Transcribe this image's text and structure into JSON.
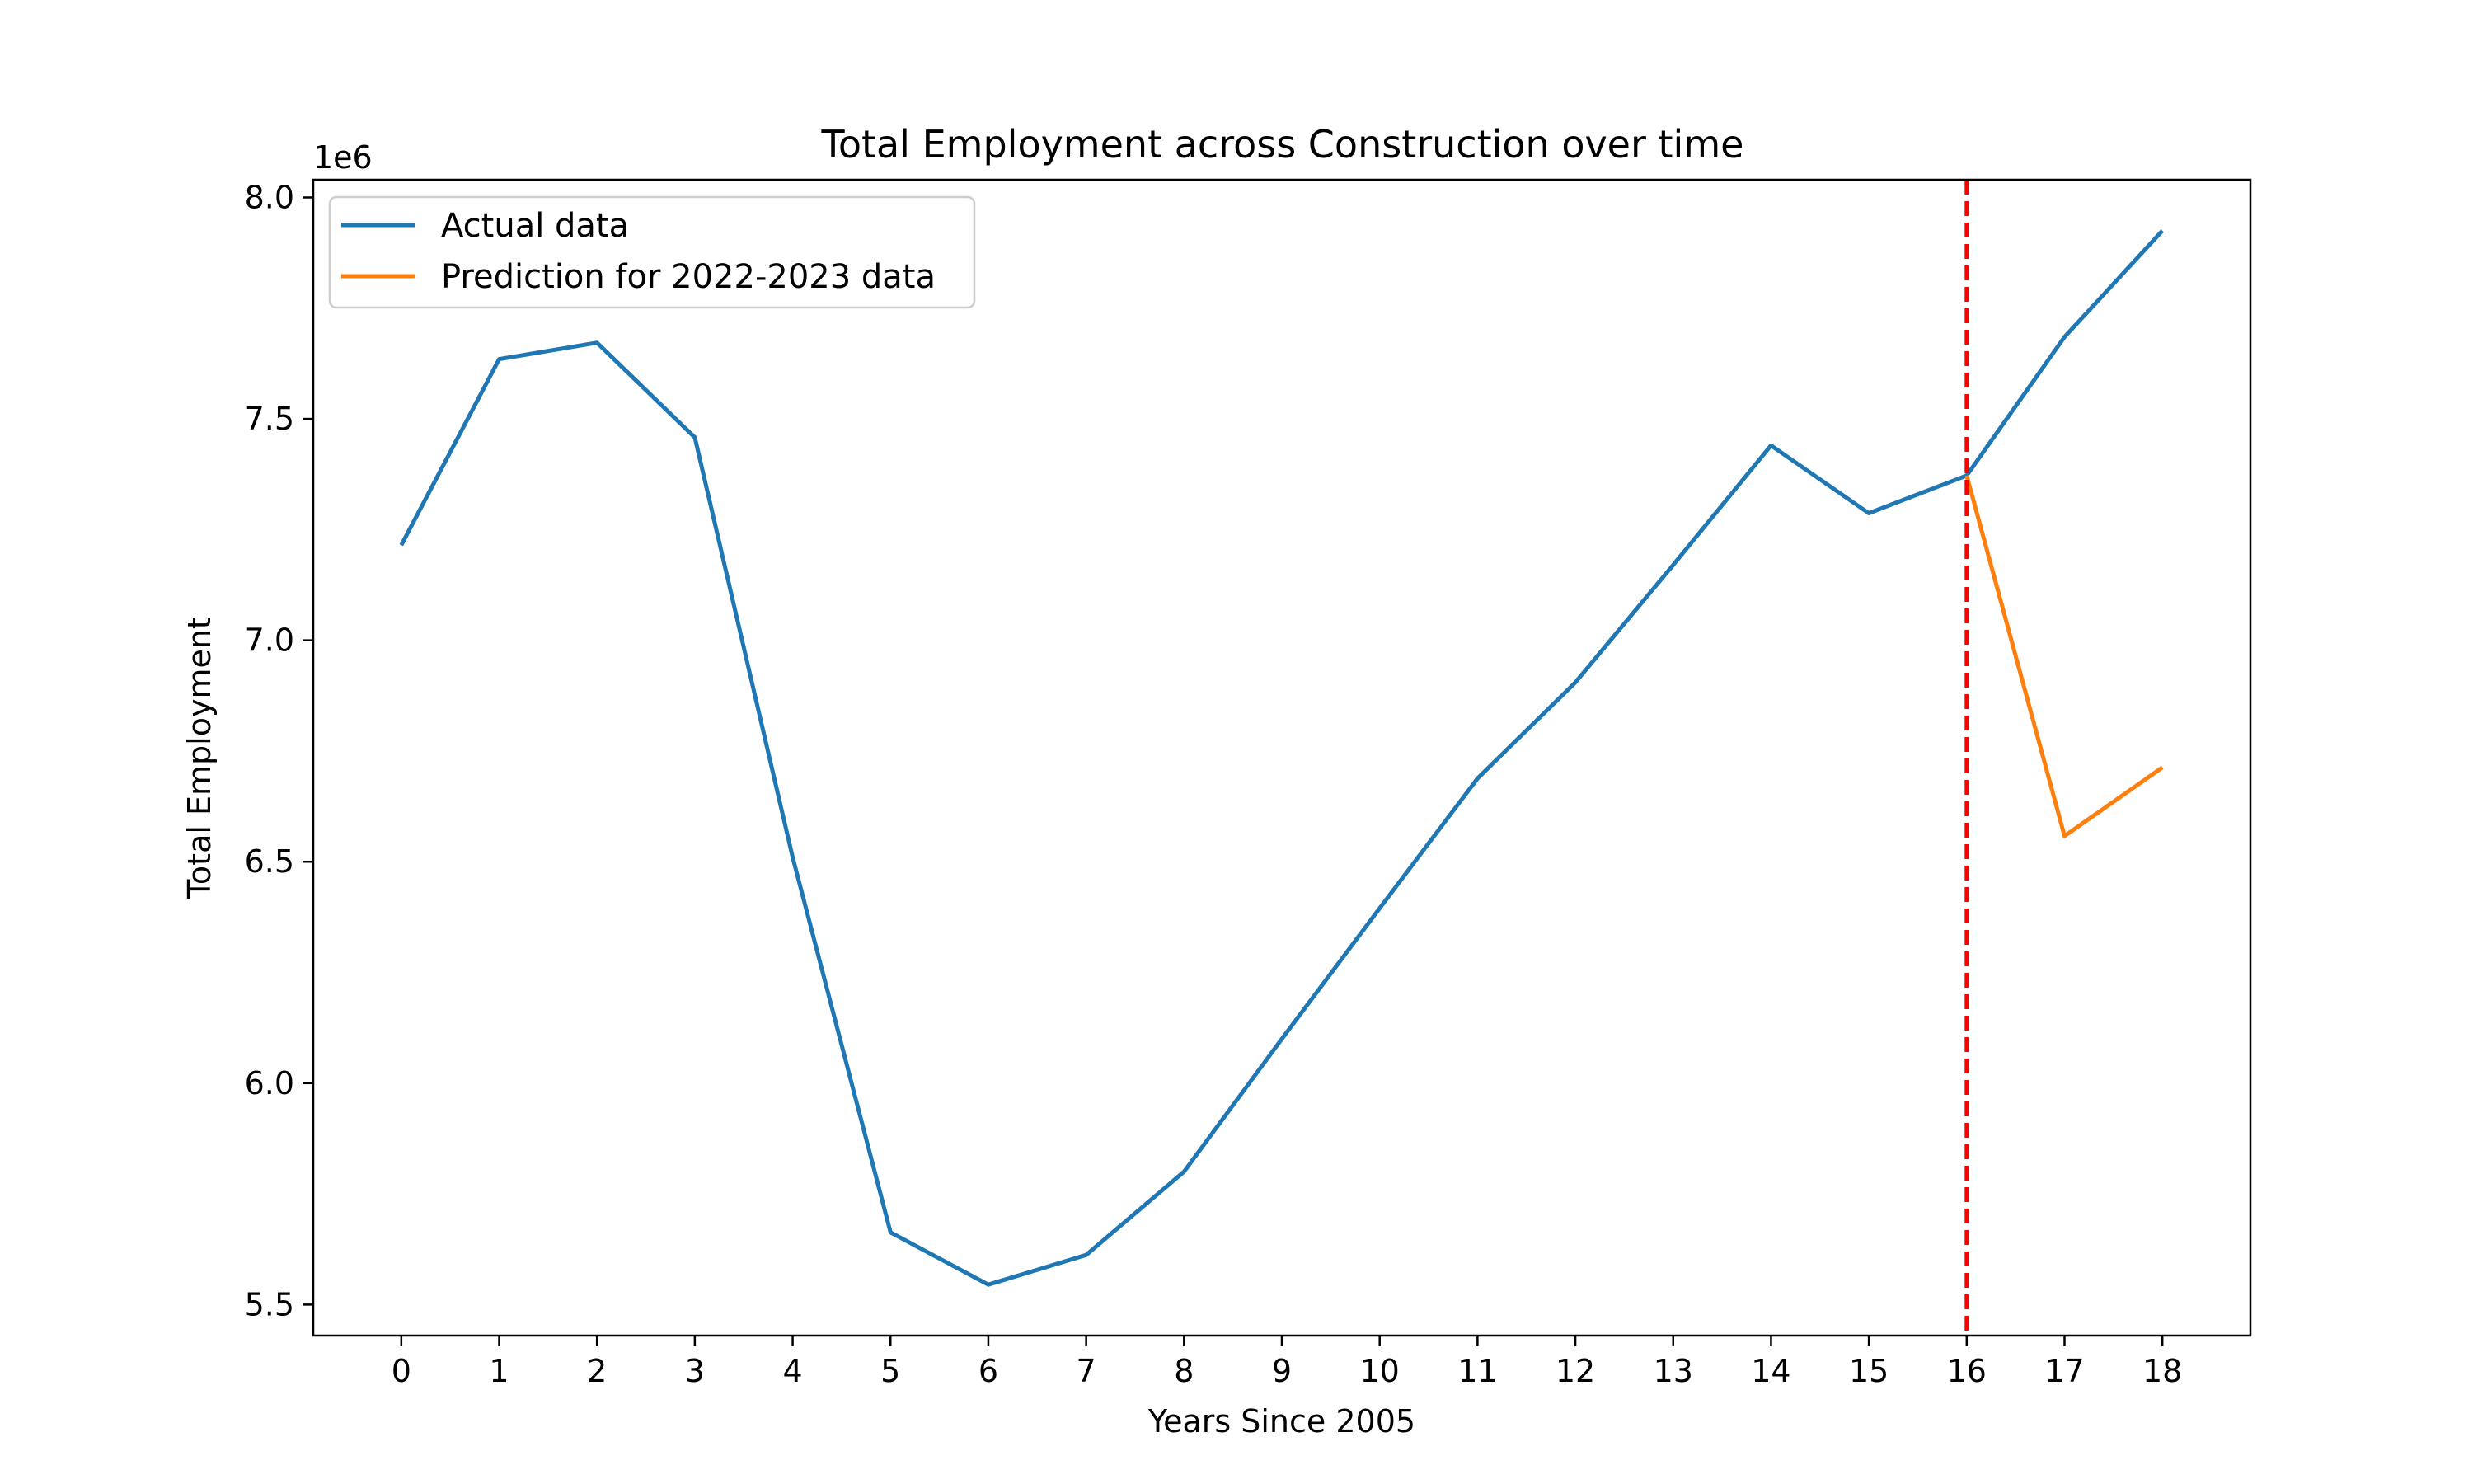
{
  "chart_data": {
    "type": "line",
    "title": "Total Employment across Construction over time",
    "xlabel": "Years Since 2005",
    "ylabel": "Total Employment",
    "y_offset_label": "1e6",
    "xlim": [
      -0.9,
      18.9
    ],
    "ylim": [
      5.43,
      8.04
    ],
    "x_ticks": [
      "0",
      "1",
      "2",
      "3",
      "4",
      "5",
      "6",
      "7",
      "8",
      "9",
      "10",
      "11",
      "12",
      "13",
      "14",
      "15",
      "16",
      "17",
      "18"
    ],
    "y_ticks": [
      {
        "value": 5.5,
        "label": "5.5"
      },
      {
        "value": 6.0,
        "label": "6.0"
      },
      {
        "value": 6.5,
        "label": "6.5"
      },
      {
        "value": 7.0,
        "label": "7.0"
      },
      {
        "value": 7.5,
        "label": "7.5"
      },
      {
        "value": 8.0,
        "label": "8.0"
      }
    ],
    "grid": false,
    "legend_position": "top-left",
    "series": [
      {
        "name": "Actual data",
        "color": "#1f77b4",
        "x": [
          0,
          1,
          2,
          3,
          4,
          5,
          6,
          7,
          8,
          9,
          10,
          11,
          12,
          13,
          14,
          15,
          16,
          17,
          18
        ],
        "y": [
          7.215,
          7.635,
          7.672,
          7.458,
          6.51,
          5.663,
          5.545,
          5.612,
          5.8,
          6.1,
          6.395,
          6.688,
          6.905,
          7.17,
          7.44,
          7.287,
          7.372,
          7.685,
          7.925
        ]
      },
      {
        "name": "Prediction for 2022-2023 data",
        "color": "#ff7f0e",
        "x": [
          16,
          17,
          18
        ],
        "y": [
          7.372,
          6.558,
          6.713
        ]
      }
    ],
    "annotations": [
      {
        "type": "vline",
        "x": 16,
        "color": "#ff0000",
        "style": "dashed"
      }
    ]
  }
}
